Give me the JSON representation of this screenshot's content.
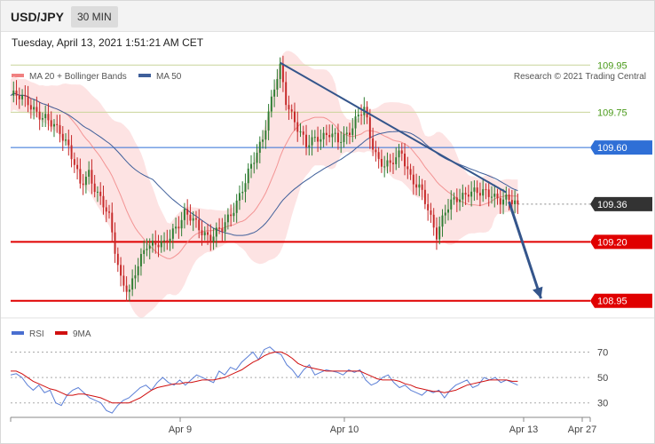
{
  "header": {
    "symbol": "USD/JPY",
    "timeframe": "30 MIN",
    "timestamp": "Tuesday, April 13, 2021 1:51:21 AM CET"
  },
  "legend": {
    "ma20": "MA 20 + Bollinger Bands",
    "ma50": "MA 50",
    "credit": "Research © 2021 Trading Central"
  },
  "rsi_legend": {
    "rsi": "RSI",
    "ma9": "9MA"
  },
  "colors": {
    "up": "#2e7d32",
    "down": "#c62828",
    "ma50": "#3f5f9a",
    "ma20": "#f08080",
    "band": "#fde0e0",
    "arrow": "#34558b",
    "resistance": "#2f6fd6",
    "support": "#e00000",
    "last_price": "#333333"
  },
  "chart_data": [
    {
      "type": "candlestick",
      "ylim": [
        108.9,
        110.0
      ],
      "x_ticks": [
        "Apr 9",
        "Apr 10",
        "Apr 13",
        "Apr 27"
      ],
      "levels": [
        {
          "value": 109.95,
          "label": "109.95",
          "style": "olive-line"
        },
        {
          "value": 109.75,
          "label": "109.75",
          "style": "olive-line"
        },
        {
          "value": 109.6,
          "label": "109.60",
          "style": "blue-box"
        },
        {
          "value": 109.36,
          "label": "109.36",
          "style": "dark-box"
        },
        {
          "value": 109.2,
          "label": "109.20",
          "style": "red-box"
        },
        {
          "value": 108.95,
          "label": "108.95",
          "style": "red-box"
        }
      ],
      "series": [
        {
          "name": "MA 20 + Bollinger Bands"
        },
        {
          "name": "MA 50"
        }
      ],
      "close_path": [
        [
          0,
          109.82
        ],
        [
          6,
          109.8
        ],
        [
          11,
          109.72
        ],
        [
          17,
          109.68
        ],
        [
          20,
          109.6
        ],
        [
          24,
          109.44
        ],
        [
          27,
          109.5
        ],
        [
          30,
          109.4
        ],
        [
          34,
          109.3
        ],
        [
          38,
          109.05
        ],
        [
          41,
          108.98
        ],
        [
          44,
          109.1
        ],
        [
          47,
          109.2
        ],
        [
          53,
          109.18
        ],
        [
          56,
          109.25
        ],
        [
          60,
          109.32
        ],
        [
          65,
          109.26
        ],
        [
          69,
          109.22
        ],
        [
          73,
          109.25
        ],
        [
          77,
          109.35
        ],
        [
          81,
          109.45
        ],
        [
          85,
          109.58
        ],
        [
          87,
          109.65
        ],
        [
          89,
          109.75
        ],
        [
          91,
          109.85
        ],
        [
          93,
          109.93
        ],
        [
          95,
          109.8
        ],
        [
          98,
          109.72
        ],
        [
          102,
          109.6
        ],
        [
          106,
          109.65
        ],
        [
          110,
          109.66
        ],
        [
          113,
          109.62
        ],
        [
          116,
          109.66
        ],
        [
          119,
          109.72
        ],
        [
          122,
          109.76
        ],
        [
          124,
          109.64
        ],
        [
          127,
          109.55
        ],
        [
          131,
          109.52
        ],
        [
          135,
          109.58
        ],
        [
          138,
          109.48
        ],
        [
          142,
          109.4
        ],
        [
          145,
          109.3
        ],
        [
          147,
          109.24
        ],
        [
          150,
          109.33
        ],
        [
          154,
          109.38
        ],
        [
          158,
          109.42
        ],
        [
          162,
          109.4
        ],
        [
          166,
          109.41
        ],
        [
          169,
          109.38
        ],
        [
          172,
          109.37
        ],
        [
          175,
          109.36
        ]
      ],
      "trendline": {
        "from": [
          93,
          109.96
        ],
        "to": [
          171,
          109.41
        ]
      },
      "projection": {
        "from": [
          172,
          109.37
        ],
        "to": [
          183,
          108.96
        ]
      },
      "current_price": 109.36
    },
    {
      "type": "line",
      "ylim": [
        20,
        78
      ],
      "y_ticks": [
        70,
        50,
        30
      ],
      "series": [
        {
          "name": "RSI",
          "values": [
            52,
            53,
            50,
            44,
            40,
            44,
            38,
            40,
            30,
            28,
            36,
            40,
            42,
            38,
            34,
            32,
            30,
            24,
            22,
            28,
            32,
            34,
            38,
            42,
            44,
            40,
            46,
            50,
            46,
            44,
            48,
            44,
            48,
            52,
            50,
            48,
            46,
            55,
            52,
            58,
            56,
            62,
            66,
            70,
            64,
            72,
            74,
            70,
            68,
            60,
            56,
            50,
            56,
            60,
            52,
            54,
            56,
            55,
            54,
            52,
            56,
            54,
            56,
            48,
            44,
            46,
            50,
            52,
            46,
            42,
            44,
            40,
            38,
            36,
            40,
            38,
            40,
            34,
            40,
            44,
            46,
            48,
            42,
            44,
            50,
            48,
            50,
            46,
            48,
            46,
            44
          ]
        },
        {
          "name": "9MA",
          "values": [
            55,
            55,
            53,
            50,
            47,
            45,
            43,
            41,
            40,
            38,
            36,
            36,
            37,
            37,
            36,
            35,
            34,
            32,
            30,
            30,
            30,
            30,
            32,
            34,
            37,
            40,
            42,
            43,
            44,
            45,
            45,
            46,
            46,
            47,
            48,
            48,
            48,
            49,
            50,
            52,
            54,
            56,
            59,
            62,
            64,
            67,
            69,
            70,
            70,
            68,
            65,
            61,
            59,
            58,
            57,
            56,
            55,
            55,
            55,
            55,
            55,
            55,
            55,
            53,
            51,
            49,
            48,
            48,
            48,
            47,
            45,
            44,
            42,
            41,
            40,
            39,
            39,
            38,
            39,
            40,
            42,
            44,
            45,
            46,
            47,
            48,
            48,
            48,
            48,
            47,
            47
          ]
        }
      ]
    }
  ]
}
